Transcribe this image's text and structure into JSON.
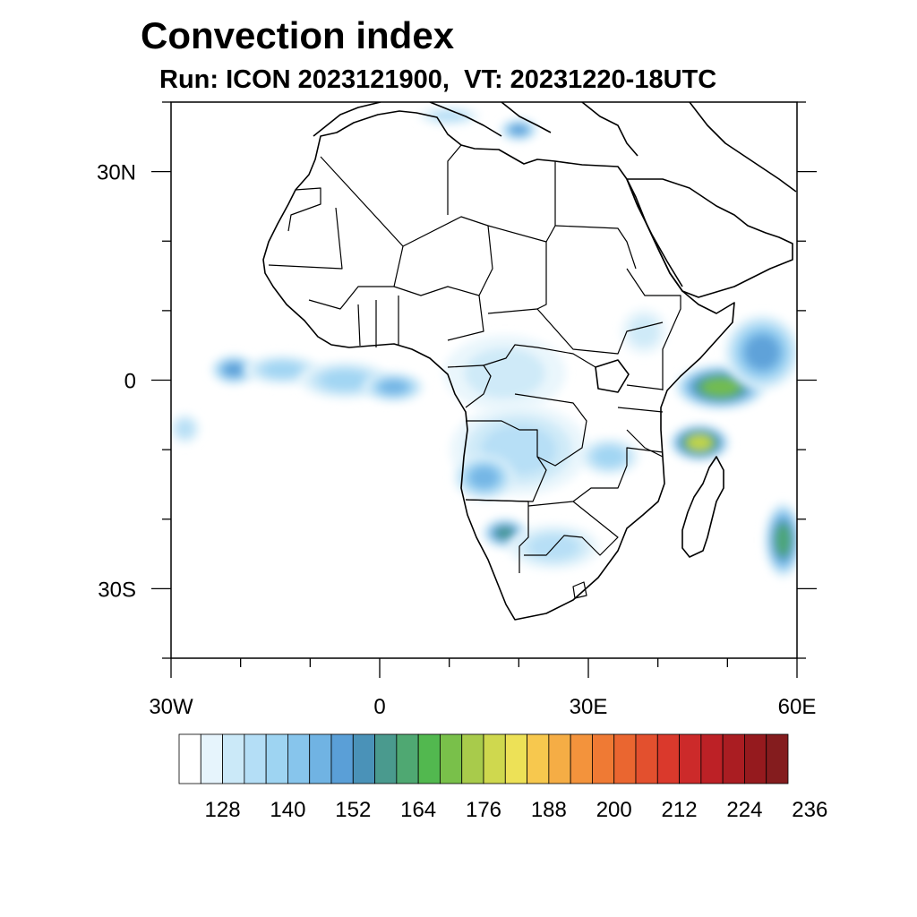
{
  "title": "Convection index",
  "subtitle": "Run: ICON 2023121900,  VT: 20231220-18UTC",
  "map": {
    "lon_range": [
      -30,
      60
    ],
    "lat_range": [
      -40,
      40
    ],
    "x_ticks": [
      {
        "lon": -30,
        "label": "30W"
      },
      {
        "lon": 0,
        "label": "0"
      },
      {
        "lon": 30,
        "label": "30E"
      },
      {
        "lon": 60,
        "label": "60E"
      }
    ],
    "y_ticks": [
      {
        "lat": 30,
        "label": "30N"
      },
      {
        "lat": 0,
        "label": "0"
      },
      {
        "lat": -30,
        "label": "30S"
      }
    ],
    "minor_lon_step": 10,
    "minor_lat_step": 10,
    "coastline_color": "#000000",
    "convection_blobs": [
      {
        "lon": -21,
        "lat": 1.5,
        "rx": 3,
        "ry": 2,
        "level": 7
      },
      {
        "lon": -14,
        "lat": 1.5,
        "rx": 5,
        "ry": 2,
        "level": 4
      },
      {
        "lon": -5,
        "lat": 0,
        "rx": 6,
        "ry": 2.5,
        "level": 4
      },
      {
        "lon": 2,
        "lat": -1,
        "rx": 4,
        "ry": 2,
        "level": 6
      },
      {
        "lon": 18,
        "lat": 1,
        "rx": 8,
        "ry": 5,
        "level": 2
      },
      {
        "lon": 20,
        "lat": -10,
        "rx": 9,
        "ry": 6,
        "level": 3
      },
      {
        "lon": 15,
        "lat": -14,
        "rx": 4,
        "ry": 3,
        "level": 6
      },
      {
        "lon": 18,
        "lat": -22,
        "rx": 3,
        "ry": 2,
        "level": 9
      },
      {
        "lon": 25,
        "lat": -24,
        "rx": 6,
        "ry": 3,
        "level": 3
      },
      {
        "lon": 33,
        "lat": -11,
        "rx": 4,
        "ry": 2.5,
        "level": 4
      },
      {
        "lon": 49,
        "lat": -1,
        "rx": 6,
        "ry": 3,
        "level": 12
      },
      {
        "lon": 46,
        "lat": -9,
        "rx": 4,
        "ry": 2.5,
        "level": 14
      },
      {
        "lon": 55,
        "lat": 4,
        "rx": 5,
        "ry": 5,
        "level": 7
      },
      {
        "lon": 58,
        "lat": -23,
        "rx": 2.5,
        "ry": 5,
        "level": 10
      },
      {
        "lon": 20,
        "lat": 36,
        "rx": 2.5,
        "ry": 1.5,
        "level": 7
      },
      {
        "lon": 10,
        "lat": 38,
        "rx": 4,
        "ry": 1.2,
        "level": 3
      },
      {
        "lon": 38,
        "lat": 7,
        "rx": 3,
        "ry": 3,
        "level": 2
      },
      {
        "lon": -28,
        "lat": -7,
        "rx": 2,
        "ry": 2,
        "level": 3
      }
    ]
  },
  "colorbar": {
    "colors": [
      "#ffffff",
      "#e6f4fc",
      "#cbe9f8",
      "#b4def6",
      "#9ed4f2",
      "#87c5ec",
      "#70b3e3",
      "#5a9fd7",
      "#4a92b8",
      "#4a9a8e",
      "#4fa872",
      "#52b84f",
      "#79c04a",
      "#a8cb4b",
      "#cfd84e",
      "#ede157",
      "#f7c84e",
      "#f5ad45",
      "#f3933c",
      "#ef7a34",
      "#ea6630",
      "#e3502e",
      "#da392c",
      "#cc2a2a",
      "#bd2126",
      "#aa1d22",
      "#951a1e",
      "#841c1e"
    ],
    "labels": [
      "128",
      "140",
      "152",
      "164",
      "176",
      "188",
      "200",
      "212",
      "224",
      "236"
    ]
  }
}
